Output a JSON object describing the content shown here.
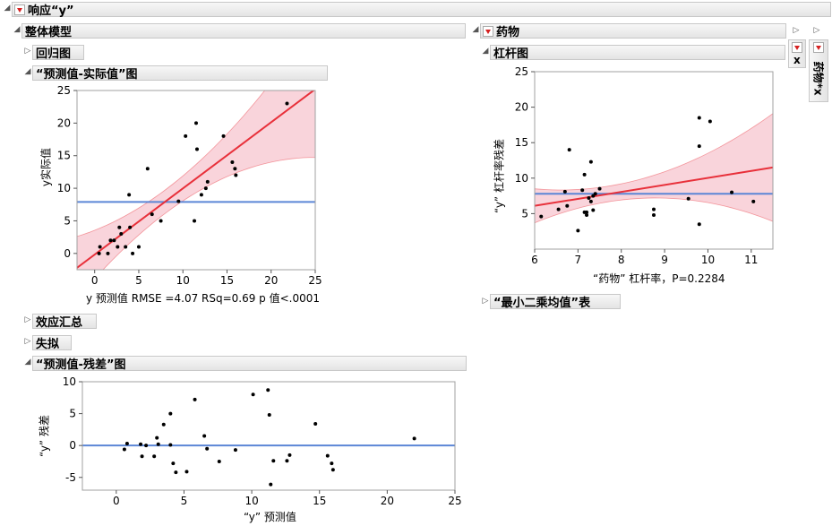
{
  "top": {
    "title": "响应“y”"
  },
  "whole_model": {
    "title": "整体模型"
  },
  "regression_plot": {
    "title": "回归图"
  },
  "actual_pred": {
    "title": "“预测值-实际值”图",
    "ylabel": "y实际值",
    "caption": "y 预测值 RMSE =4.07 RSq=0.69 p 值<.0001"
  },
  "effect_summary": {
    "title": "效应汇总"
  },
  "lack_of_fit": {
    "title": "失拟"
  },
  "residual_pred": {
    "title": "“预测值-残差”图",
    "ylabel": "“y” 残差",
    "xlabel": "“y” 预测值"
  },
  "drug": {
    "title": "药物"
  },
  "leverage": {
    "title": "杠杆图",
    "ylabel": "“y” 杠杆率残差",
    "caption": "“药物” 杠杆率，P=0.2284"
  },
  "least_squares": {
    "title": "“最小二乘均值”表"
  },
  "side_x": {
    "title": "x"
  },
  "side_drug_x": {
    "title": "药物*x"
  },
  "colors": {
    "red": "#e8303a",
    "blue": "#5b86d6",
    "band": "#f7c6cf"
  },
  "chart_data": [
    {
      "type": "scatter",
      "title": "“预测值-实际值”图",
      "xlabel": "y 预测值",
      "ylabel": "y实际值",
      "xlim": [
        -2,
        25
      ],
      "ylim": [
        -2.5,
        25
      ],
      "xticks": [
        0,
        5,
        10,
        15,
        20,
        25
      ],
      "yticks": [
        0,
        5,
        10,
        15,
        20,
        25
      ],
      "mean_line": 7.9,
      "fit_line": [
        [
          -2,
          -2.2
        ],
        [
          25,
          25.2
        ]
      ],
      "x": [
        0.5,
        0.6,
        1.5,
        1.8,
        2.2,
        2.6,
        2.8,
        3.0,
        3.5,
        3.9,
        4.0,
        4.3,
        5.0,
        6.0,
        6.5,
        7.5,
        9.5,
        10.3,
        11.3,
        11.5,
        11.6,
        12.1,
        12.6,
        12.8,
        14.6,
        15.6,
        15.9,
        16.0,
        21.8
      ],
      "y": [
        0,
        1,
        0,
        2,
        2,
        1,
        4,
        3,
        1,
        9,
        4,
        0,
        1,
        13,
        6,
        5,
        8,
        18,
        5,
        20,
        16,
        9,
        10,
        11,
        18,
        14,
        13,
        12,
        23
      ]
    },
    {
      "type": "scatter",
      "title": "“预测值-残差”图",
      "xlabel": "“y” 预测值",
      "ylabel": "“y” 残差",
      "xlim": [
        -2.5,
        25
      ],
      "ylim": [
        -7,
        10
      ],
      "xticks": [
        0,
        5,
        10,
        15,
        20,
        25
      ],
      "yticks": [
        -5,
        0,
        5,
        10
      ],
      "zero_line": 0,
      "x": [
        0.6,
        0.8,
        1.8,
        1.9,
        2.2,
        2.8,
        3.0,
        3.1,
        3.5,
        4.0,
        4.0,
        4.2,
        4.4,
        5.2,
        5.8,
        6.5,
        6.7,
        7.6,
        8.8,
        10.1,
        11.2,
        11.3,
        11.4,
        11.6,
        12.6,
        12.8,
        14.7,
        15.6,
        15.9,
        16.0,
        22.0
      ],
      "y": [
        -0.6,
        0.3,
        0.2,
        -1.7,
        0,
        -1.7,
        1.2,
        0.2,
        3.3,
        5.0,
        0.1,
        -2.8,
        -4.2,
        -4.1,
        7.2,
        1.5,
        -0.5,
        -2.5,
        -0.7,
        8.0,
        8.7,
        4.8,
        -6.1,
        -2.4,
        -2.4,
        -1.5,
        3.4,
        -1.6,
        -2.8,
        -3.8,
        1.1
      ]
    },
    {
      "type": "scatter",
      "title": "杠杆图",
      "xlabel": "“药物” 杠杆率，P=0.2284",
      "ylabel": "“y” 杠杆率残差",
      "xlim": [
        6,
        11.5
      ],
      "ylim": [
        0,
        25
      ],
      "xticks": [
        6,
        7,
        8,
        9,
        10,
        11
      ],
      "yticks": [
        5,
        10,
        15,
        20,
        25
      ],
      "mean_line": 7.8,
      "fit_line": [
        [
          6,
          6.1
        ],
        [
          11.5,
          11.5
        ]
      ],
      "x": [
        6.15,
        6.55,
        6.7,
        6.75,
        6.8,
        7.0,
        7.1,
        7.15,
        7.15,
        7.2,
        7.2,
        7.25,
        7.3,
        7.3,
        7.35,
        7.35,
        7.4,
        7.5,
        8.75,
        8.75,
        9.55,
        9.8,
        9.8,
        9.8,
        10.05,
        10.55,
        11.05
      ],
      "y": [
        4.6,
        5.6,
        8.1,
        6.1,
        14,
        2.6,
        8.3,
        5.2,
        10.5,
        5.2,
        4.8,
        7.2,
        12.3,
        6.7,
        7.5,
        5.5,
        7.8,
        8.5,
        5.6,
        4.8,
        7.1,
        18.5,
        14.5,
        3.5,
        18,
        8,
        6.7
      ]
    }
  ]
}
